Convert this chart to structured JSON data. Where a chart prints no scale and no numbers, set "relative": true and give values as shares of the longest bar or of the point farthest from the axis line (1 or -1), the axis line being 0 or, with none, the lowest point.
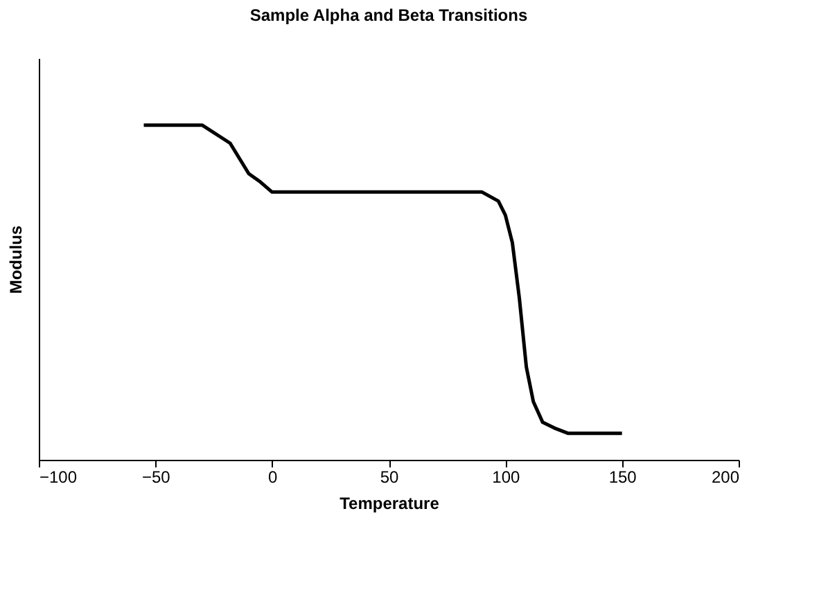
{
  "chart_data": {
    "type": "line",
    "title": "Sample Alpha and Beta Transitions",
    "xlabel": "Temperature",
    "ylabel": "Modulus",
    "relative": true,
    "x": [
      -55,
      -30,
      -18,
      -10,
      -5,
      0,
      90,
      97,
      100,
      103,
      106,
      109,
      112,
      116,
      121,
      127,
      150
    ],
    "series": [
      {
        "color": "#000000",
        "values": [
          1.0,
          1.0,
          0.946,
          0.855,
          0.83,
          0.8,
          0.8,
          0.773,
          0.731,
          0.649,
          0.483,
          0.277,
          0.174,
          0.112,
          0.095,
          0.079,
          0.079
        ]
      }
    ],
    "xlim": [
      -100,
      200
    ],
    "xticks": [
      -100,
      -50,
      0,
      50,
      100,
      150,
      200
    ],
    "grid": false,
    "marker": "none",
    "line_style": "solid"
  }
}
